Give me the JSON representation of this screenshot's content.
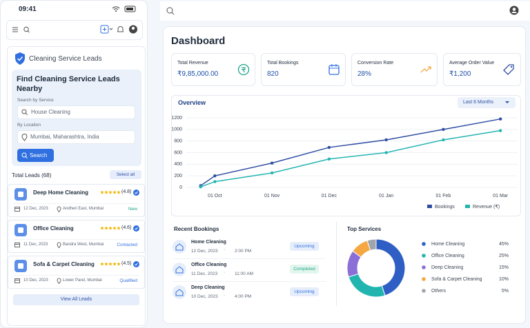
{
  "mobile": {
    "status_time": "09:41",
    "card_title": "Cleaning Service Leads",
    "finder": {
      "title": "Find Cleaning Service Leads Nearby",
      "service_label": "Search by Service",
      "service_value": "House Cleaning",
      "location_label": "By Location",
      "location_value": "Mumbai, Maharashtra, India",
      "button": "Search"
    },
    "total_leads": "Total Leads (68)",
    "select_all": "Select all",
    "leads": [
      {
        "name": "Deep Home Cleaning",
        "rating": "(4.8)",
        "date": "12 Dec, 2023",
        "location": "Andheri East, Mumbai",
        "status": "New"
      },
      {
        "name": "Office Cleaning",
        "rating": "(4.6)",
        "date": "11 Dec, 2023",
        "location": "Bandra West, Mumbai",
        "status": "Contacted"
      },
      {
        "name": "Sofa & Carpet Cleaning",
        "rating": "(4.5)",
        "date": "10 Dec, 2023",
        "location": "Lower Parel, Mumbai",
        "status": "Qualified"
      }
    ],
    "view_all": "View All Leads"
  },
  "dashboard": {
    "title": "Dashboard",
    "kpis": [
      {
        "label": "Total Revenue",
        "value": "₹9,85,000.00"
      },
      {
        "label": "Total Bookings",
        "value": "820"
      },
      {
        "label": "Conversion Rate",
        "value": "28%"
      },
      {
        "label": "Average Order Value",
        "value": "₹1,200"
      }
    ],
    "overview": "Overview",
    "range": "Last 6 Months",
    "recent_title": "Recent Bookings",
    "bookings": [
      {
        "name": "Home Cleaning",
        "date": "12 Dec, 2023",
        "time": "2:00 PM",
        "status": "Upcoming"
      },
      {
        "name": "Office Cleaning",
        "date": "11 Dec, 2023",
        "time": "11:00 AM",
        "status": "Completed"
      },
      {
        "name": "Deep Cleaning",
        "date": "10 Dec, 2023",
        "time": "4:00 PM",
        "status": "Upcoming"
      }
    ],
    "services_title": "Top Services"
  },
  "chart_data": [
    {
      "type": "line",
      "x": [
        -0.25,
        0,
        1,
        2,
        3,
        4,
        5
      ],
      "xlim": [
        -0.5,
        5.3
      ],
      "xticks": [
        {
          "value": 0,
          "label": "01 Oct"
        },
        {
          "value": 1,
          "label": "01 Nov"
        },
        {
          "value": 2,
          "label": "01 Dec"
        },
        {
          "value": 3,
          "label": "01 Jan"
        },
        {
          "value": 4,
          "label": "01 Feb"
        },
        {
          "value": 5,
          "label": "01 Mar"
        }
      ],
      "ylim": [
        0,
        1200
      ],
      "yticks": [
        0,
        200,
        400,
        600,
        800,
        1000,
        1200
      ],
      "grid": true,
      "series": [
        {
          "name": "Bookings",
          "color": "#2f4ea3",
          "values": [
            30,
            200,
            420,
            690,
            820,
            1000,
            1180
          ]
        },
        {
          "name": "Revenue (₹)",
          "color": "#22b5b0",
          "values": [
            10,
            100,
            250,
            490,
            600,
            820,
            980
          ]
        }
      ]
    },
    {
      "type": "pie",
      "categories": [
        "Home Cleaning",
        "Office Cleaning",
        "Deep Cleaning",
        "Sofa & Carpet Cleaning",
        "Others"
      ],
      "values": [
        45,
        25,
        15,
        10,
        5
      ],
      "value_labels": [
        "45%",
        "25%",
        "15%",
        "10%",
        "5%"
      ],
      "colors": [
        "#2f5fc4",
        "#22b5b0",
        "#8b6fd6",
        "#f5a742",
        "#a0a4ab"
      ]
    }
  ]
}
